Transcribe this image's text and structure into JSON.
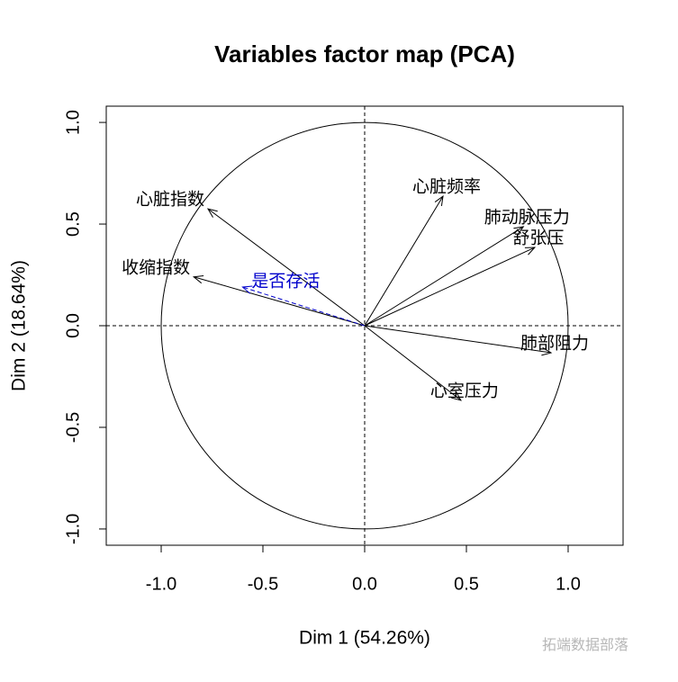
{
  "chart_data": {
    "type": "vector",
    "title": "Variables factor map (PCA)",
    "x_label": "Dim 1 (54.26%)",
    "y_label": "Dim 2 (18.64%)",
    "xlim": [
      -1.27,
      1.27
    ],
    "ylim": [
      -1.08,
      1.08
    ],
    "xticks": [
      {
        "value": -1,
        "label": "-1.0"
      },
      -0.5,
      {
        "value": 0,
        "label": "0.0"
      },
      0.5,
      {
        "value": 1,
        "label": "1.0"
      }
    ],
    "yticks": [
      {
        "value": -1,
        "label": "-1.0"
      },
      -0.5,
      {
        "value": 0,
        "label": "0.0"
      },
      0.5,
      {
        "value": 1,
        "label": "1.0"
      }
    ],
    "unit_circle": true,
    "variables": [
      {
        "name": "心脏指数",
        "x": -0.77,
        "y": 0.575,
        "color": "#000000",
        "line_style": "solid"
      },
      {
        "name": "收缩指数",
        "x": -0.84,
        "y": 0.24,
        "color": "#000000",
        "line_style": "solid"
      },
      {
        "name": "是否存活",
        "x": -0.6,
        "y": 0.19,
        "color": "#0000cc",
        "line_style": "dashed"
      },
      {
        "name": "心脏频率",
        "x": 0.385,
        "y": 0.637,
        "color": "#000000",
        "line_style": "solid"
      },
      {
        "name": "肺动脉压力",
        "x": 0.78,
        "y": 0.487,
        "color": "#000000",
        "line_style": "solid"
      },
      {
        "name": "舒张压",
        "x": 0.836,
        "y": 0.385,
        "color": "#000000",
        "line_style": "solid"
      },
      {
        "name": "肺部阻力",
        "x": 0.916,
        "y": -0.133,
        "color": "#000000",
        "line_style": "solid"
      },
      {
        "name": "心室压力",
        "x": 0.473,
        "y": -0.367,
        "color": "#000000",
        "line_style": "solid"
      }
    ],
    "watermark": "拓端数据部落"
  }
}
